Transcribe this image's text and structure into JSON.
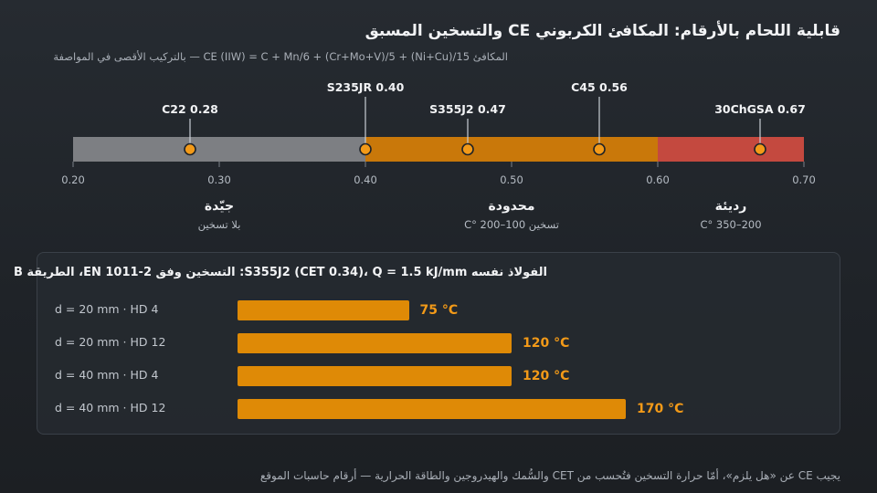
{
  "title": "قابلية اللحام بالأرقام: المكافئ الكربوني CE والتسخين المسبق",
  "subtitle": "المكافئ CE (IIW) = C + Mn/6 + (Cr+Mo+V)/5 + (Ni+Cu)/15 — بالتركيب الأقصى في المواصفة",
  "colors": {
    "good": "#7d7f83",
    "limited": "#c9780a",
    "poor": "#c4493f",
    "marker": "#f39a18",
    "bar": "#df8a06"
  },
  "chart_data": [
    {
      "type": "scale",
      "title": "قابلية اللحام بالأرقام: المكافئ الكربوني CE والتسخين المسبق",
      "xlim": [
        0.2,
        0.7
      ],
      "ticks": [
        "0.20",
        "0.30",
        "0.40",
        "0.50",
        "0.60",
        "0.70"
      ],
      "tick_values": [
        0.2,
        0.3,
        0.4,
        0.5,
        0.6,
        0.7
      ],
      "zones": [
        {
          "from": 0.2,
          "to": 0.4,
          "label": "جيّدة",
          "sublabel": "بلا تسخين",
          "color": "#7d7f83"
        },
        {
          "from": 0.4,
          "to": 0.6,
          "label": "محدودة",
          "sublabel": "تسخين 100–200 °C",
          "color": "#c9780a"
        },
        {
          "from": 0.6,
          "to": 0.7,
          "label": "رديئة",
          "sublabel": "200–350 °C",
          "color": "#c4493f"
        }
      ],
      "points": [
        {
          "name": "C22",
          "value": 0.28,
          "label": "C22 0.28",
          "level": 1
        },
        {
          "name": "S235JR",
          "value": 0.4,
          "label": "S235JR 0.40",
          "level": 0
        },
        {
          "name": "S355J2",
          "value": 0.47,
          "label": "S355J2 0.47",
          "level": 1
        },
        {
          "name": "C45",
          "value": 0.56,
          "label": "C45 0.56",
          "level": 0
        },
        {
          "name": "30ChGSA",
          "value": 0.67,
          "label": "30ChGSA 0.67",
          "level": 1
        }
      ]
    },
    {
      "type": "bar",
      "title": "الفولاذ نفسه S355J2 (CET 0.34)، Q = 1.5 kJ/mm: التسخين وفق EN 1011-2، الطريقة B",
      "categories": [
        "d = 20 mm · HD 4",
        "d = 20 mm · HD 12",
        "d = 40 mm · HD 4",
        "d = 40 mm · HD 12"
      ],
      "values": [
        75,
        120,
        120,
        170
      ],
      "value_labels": [
        "75 °C",
        "120 °C",
        "120 °C",
        "170 °C"
      ],
      "xlim": [
        0,
        240
      ]
    }
  ],
  "footer": "يجيب CE عن «هل يلزم»، أمّا حرارة التسخين فتُحسب من CET والسُّمك والهيدروجين والطاقة الحرارية — أرقام حاسبات الموقع"
}
